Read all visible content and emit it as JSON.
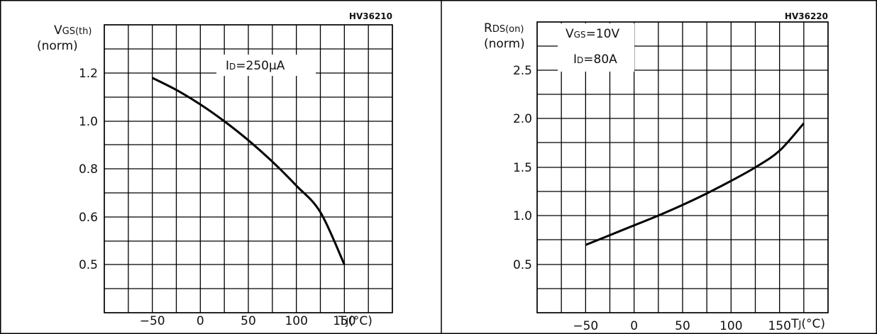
{
  "chart_data": [
    {
      "type": "line",
      "code": "HV36210",
      "ylabel_line1": "VGS(th)",
      "ylabel_line2": "(norm)",
      "xlabel": "TJ(°C)",
      "annotations": [
        "ID=250µA"
      ],
      "x_ticks": [
        -50,
        0,
        50,
        100,
        150
      ],
      "y_ticks": [
        1.2,
        1.0,
        0.8,
        0.6,
        0.5
      ],
      "grid": true,
      "series": [
        {
          "x": [
            -50,
            -25,
            0,
            25,
            50,
            75,
            100,
            125,
            150
          ],
          "y": [
            1.18,
            1.13,
            1.07,
            1.0,
            0.92,
            0.83,
            0.73,
            0.62,
            0.5
          ]
        }
      ]
    },
    {
      "type": "line",
      "code": "HV36220",
      "ylabel_line1": "RDS(on)",
      "ylabel_line2": "(norm)",
      "xlabel": "TJ(°C)",
      "annotations": [
        "VGS=10V",
        "ID=80A"
      ],
      "x_ticks": [
        -50,
        0,
        50,
        100,
        150
      ],
      "y_ticks": [
        2.5,
        2.0,
        1.5,
        1.0,
        0.5
      ],
      "grid": true,
      "series": [
        {
          "x": [
            -50,
            -25,
            0,
            25,
            50,
            75,
            100,
            125,
            150,
            175
          ],
          "y": [
            0.7,
            0.8,
            0.9,
            1.0,
            1.11,
            1.23,
            1.36,
            1.5,
            1.67,
            1.95
          ]
        }
      ]
    }
  ]
}
